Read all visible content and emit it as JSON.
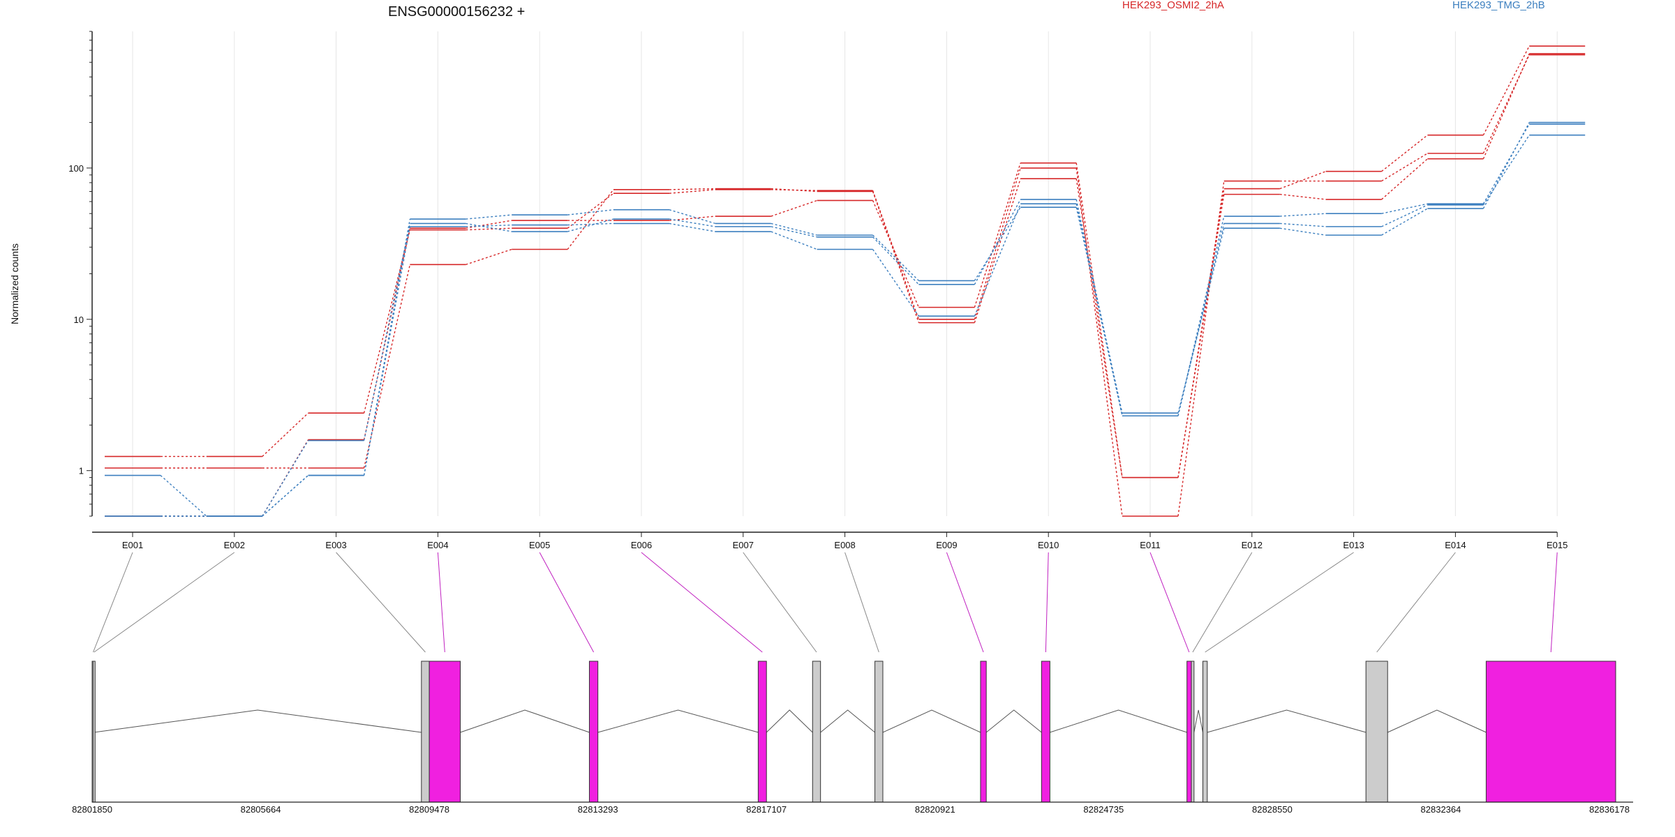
{
  "chart_data": {
    "type": "line",
    "title": "ENSG00000156232 +",
    "ylabel": "Normalized counts",
    "yscale": "log",
    "ylim": [
      0.5,
      800
    ],
    "yticks": [
      1,
      10,
      100
    ],
    "grid": {
      "x": true,
      "y": false
    },
    "categories": [
      "E001",
      "E002",
      "E003",
      "E004",
      "E005",
      "E006",
      "E007",
      "E008",
      "E009",
      "E010",
      "E011",
      "E012",
      "E013",
      "E014",
      "E015"
    ],
    "legend": [
      {
        "name": "HEK293_OSMI2_2hA",
        "color": "#d62728"
      },
      {
        "name": "HEK293_TMG_2hB",
        "color": "#3c7fbf"
      }
    ],
    "series": [
      {
        "group": "HEK293_OSMI2_2hA",
        "color": "#d62728",
        "values": [
          1.24,
          1.24,
          2.4,
          39,
          40,
          68,
          72,
          71,
          10,
          100,
          0.5,
          82,
          82,
          125,
          560
        ]
      },
      {
        "group": "HEK293_OSMI2_2hA",
        "color": "#d62728",
        "values": [
          1.04,
          1.04,
          1.04,
          23,
          29,
          72,
          73,
          70,
          9.5,
          85,
          0.9,
          73,
          95,
          165,
          640
        ]
      },
      {
        "group": "HEK293_OSMI2_2hA",
        "color": "#d62728",
        "values": [
          0.5,
          0.5,
          1.6,
          40,
          45,
          45,
          48,
          61,
          12,
          108,
          0.9,
          67,
          62,
          115,
          570
        ]
      },
      {
        "group": "HEK293_TMG_2hB",
        "color": "#3c7fbf",
        "values": [
          0.93,
          0.5,
          0.93,
          46,
          49,
          53,
          43,
          36,
          18,
          55,
          2.3,
          48,
          50,
          58,
          195
        ]
      },
      {
        "group": "HEK293_TMG_2hB",
        "color": "#3c7fbf",
        "values": [
          0.5,
          0.5,
          1.58,
          43,
          38,
          46,
          41,
          35,
          17,
          62,
          2.3,
          43,
          41,
          57,
          165
        ]
      },
      {
        "group": "HEK293_TMG_2hB",
        "color": "#3c7fbf",
        "values": [
          0.5,
          0.5,
          0.93,
          41,
          42,
          43,
          38,
          29,
          10.5,
          58,
          2.4,
          40,
          36,
          54,
          200
        ]
      }
    ],
    "gene_model": {
      "coordinate_ticks": [
        "82801850",
        "82805664",
        "82809478",
        "82813293",
        "82817107",
        "82820921",
        "82824735",
        "82828550",
        "82832364",
        "82836178"
      ],
      "exons": [
        {
          "id": "E001",
          "start": 82801850,
          "end": 82801870,
          "highlight": false
        },
        {
          "id": "E002",
          "start": 82801870,
          "end": 82801890,
          "highlight": false
        },
        {
          "id": "E003",
          "start": 82809300,
          "end": 82809478,
          "highlight": false
        },
        {
          "id": "E004",
          "start": 82809478,
          "end": 82810180,
          "highlight": true
        },
        {
          "id": "E005",
          "start": 82813100,
          "end": 82813293,
          "highlight": true
        },
        {
          "id": "E006",
          "start": 82816920,
          "end": 82817107,
          "highlight": true
        },
        {
          "id": "E007",
          "start": 82818150,
          "end": 82818330,
          "highlight": false
        },
        {
          "id": "E008",
          "start": 82819560,
          "end": 82819740,
          "highlight": false
        },
        {
          "id": "E009",
          "start": 82821950,
          "end": 82822080,
          "highlight": true
        },
        {
          "id": "E010",
          "start": 82823330,
          "end": 82823520,
          "highlight": true
        },
        {
          "id": "E011",
          "start": 82826620,
          "end": 82826720,
          "highlight": true
        },
        {
          "id": "E012",
          "start": 82826720,
          "end": 82826780,
          "highlight": false
        },
        {
          "id": "E013",
          "start": 82826980,
          "end": 82827080,
          "highlight": false
        },
        {
          "id": "E014",
          "start": 82830670,
          "end": 82831160,
          "highlight": false
        },
        {
          "id": "E015",
          "start": 82833390,
          "end": 82836320,
          "highlight": true
        }
      ]
    }
  }
}
